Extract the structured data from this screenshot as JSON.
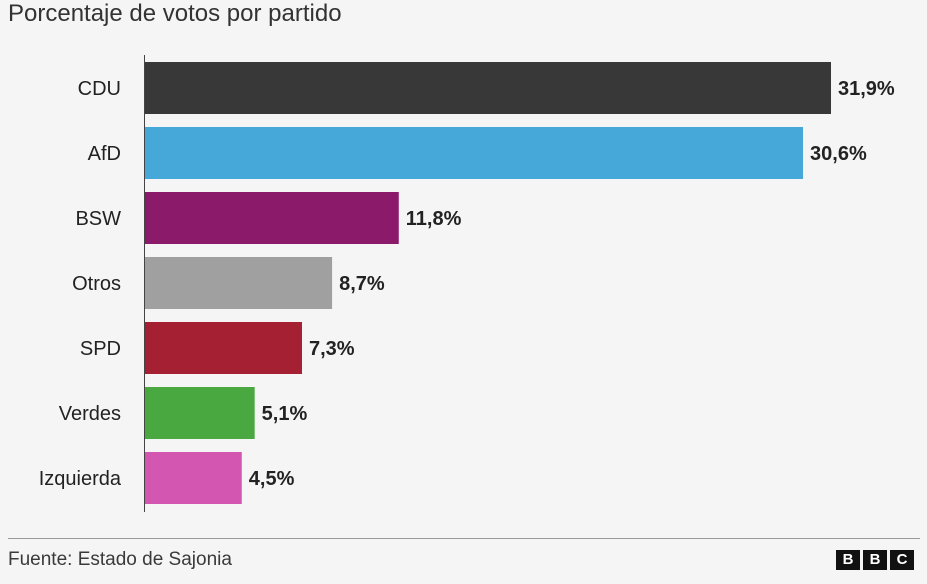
{
  "title": "Porcentaje de votos por partido",
  "source": "Fuente: Estado de Sajonia",
  "logo": {
    "letters": [
      "B",
      "B",
      "C"
    ]
  },
  "chart_data": {
    "type": "bar",
    "orientation": "horizontal",
    "title": "Porcentaje de votos por partido",
    "categories": [
      "CDU",
      "AfD",
      "BSW",
      "Otros",
      "SPD",
      "Verdes",
      "Izquierda"
    ],
    "values": [
      31.9,
      30.6,
      11.8,
      8.7,
      7.3,
      5.1,
      4.5
    ],
    "value_labels": [
      "31,9%",
      "30,6%",
      "11,8%",
      "8,7%",
      "7,3%",
      "5,1%",
      "4,5%"
    ],
    "colors": [
      "#383838",
      "#46a8d8",
      "#8b1a6a",
      "#a0a0a0",
      "#a52033",
      "#4aa840",
      "#d357b0"
    ],
    "xlim": [
      0,
      31.9
    ],
    "grid": false,
    "legend": "none"
  }
}
